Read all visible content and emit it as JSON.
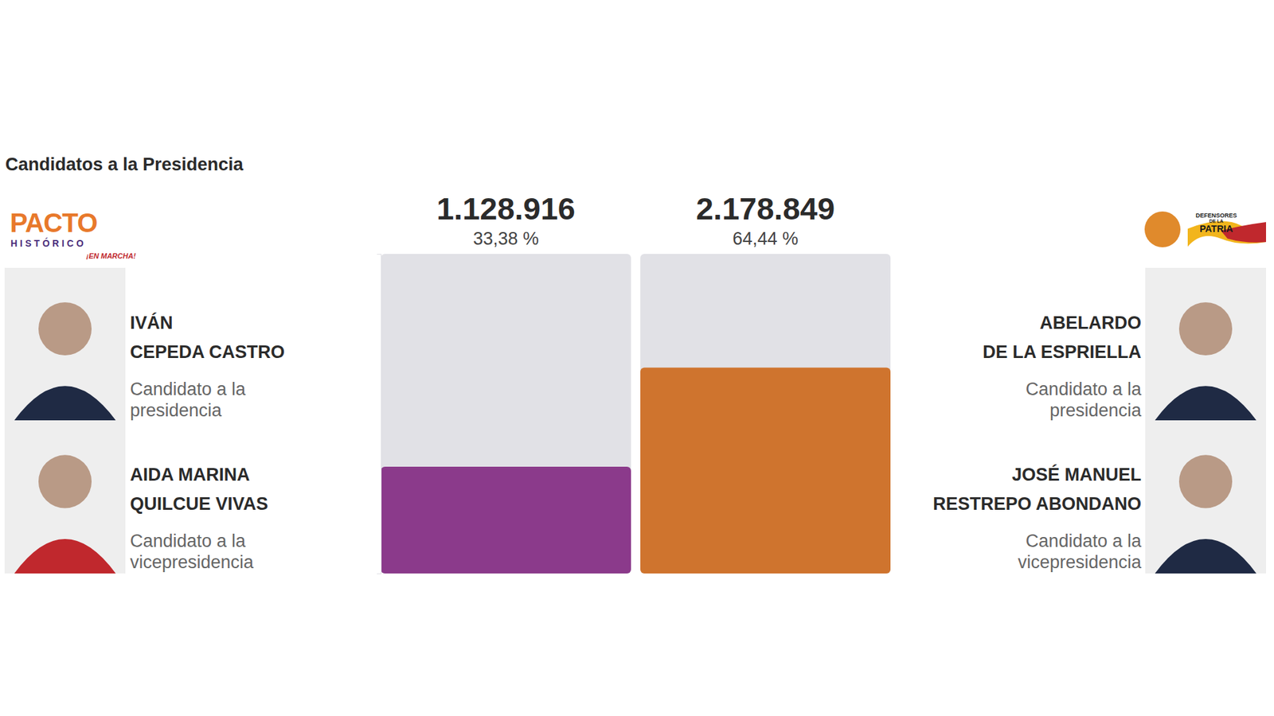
{
  "chart_data": {
    "type": "bar",
    "title": "Candidatos a la Presidencia",
    "categories": [
      "IVÁN CEPEDA CASTRO",
      "ABELARDO DE LA ESPRIELLA"
    ],
    "running_mates": [
      "AIDA MARINA QUILCUE VIVAS",
      "JOSÉ MANUEL RESTREPO ABONDANO"
    ],
    "roles": [
      "Candidato a la presidencia",
      "Candidato a la vicepresidencia"
    ],
    "logos": [
      {
        "lines": [
          "PACTO",
          "HISTÓRICO",
          "¡EN MARCHA!"
        ]
      },
      {
        "lines": [
          "DEFENSORES",
          "DE LA",
          "PATRIA"
        ]
      }
    ],
    "values": [
      33.38,
      64.44
    ],
    "value_labels": [
      "33,38 %",
      "64,44 %"
    ],
    "votes": [
      1128916,
      2178849
    ],
    "vote_labels": [
      "1.128.916",
      "2.178.849"
    ],
    "colors": [
      "#8b3a8b",
      "#cf742e"
    ],
    "ylim": [
      0,
      100
    ],
    "yticks": [],
    "tick_labels": false,
    "data_labels": true,
    "grid": false
  }
}
